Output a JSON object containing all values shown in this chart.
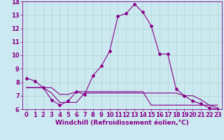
{
  "xlabel": "Windchill (Refroidissement éolien,°C)",
  "background_color": "#cce8f0",
  "grid_color": "#aad8cc",
  "line_color": "#880088",
  "xlim": [
    -0.5,
    23.5
  ],
  "ylim": [
    6,
    14
  ],
  "yticks": [
    6,
    7,
    8,
    9,
    10,
    11,
    12,
    13,
    14
  ],
  "xticks": [
    0,
    1,
    2,
    3,
    4,
    5,
    6,
    7,
    8,
    9,
    10,
    11,
    12,
    13,
    14,
    15,
    16,
    17,
    18,
    19,
    20,
    21,
    22,
    23
  ],
  "line1_x": [
    0,
    1,
    2,
    3,
    4,
    5,
    6,
    7,
    8,
    9,
    10,
    11,
    12,
    13,
    14,
    15,
    16,
    17,
    18,
    19,
    20,
    21,
    22,
    23
  ],
  "line1_y": [
    8.3,
    8.1,
    7.6,
    6.7,
    6.3,
    6.6,
    7.3,
    7.1,
    8.5,
    9.2,
    10.3,
    12.9,
    13.1,
    13.8,
    13.2,
    12.2,
    10.1,
    10.1,
    7.5,
    7.0,
    6.6,
    6.4,
    6.1,
    6.0
  ],
  "line2_x": [
    0,
    1,
    2,
    3,
    4,
    5,
    6,
    7,
    8,
    9,
    10,
    11,
    12,
    13,
    14,
    15,
    16,
    17,
    18,
    19,
    20,
    21,
    22,
    23
  ],
  "line2_y": [
    7.6,
    7.6,
    7.6,
    7.6,
    7.1,
    7.1,
    7.3,
    7.3,
    7.3,
    7.3,
    7.3,
    7.3,
    7.3,
    7.3,
    7.3,
    6.3,
    6.3,
    6.3,
    6.3,
    6.3,
    6.3,
    6.3,
    6.3,
    6.3
  ],
  "line3_x": [
    0,
    1,
    2,
    3,
    4,
    5,
    6,
    7,
    8,
    9,
    10,
    11,
    12,
    13,
    14,
    15,
    16,
    17,
    18,
    19,
    20,
    21,
    22,
    23
  ],
  "line3_y": [
    7.6,
    7.6,
    7.6,
    7.2,
    6.5,
    6.5,
    6.5,
    7.2,
    7.2,
    7.2,
    7.2,
    7.2,
    7.2,
    7.2,
    7.2,
    7.2,
    7.2,
    7.2,
    7.2,
    7.0,
    7.0,
    6.7,
    6.3,
    6.1
  ],
  "axis_fontsize": 6.5,
  "tick_fontsize": 6.0,
  "xlabel_fontsize": 6.5
}
